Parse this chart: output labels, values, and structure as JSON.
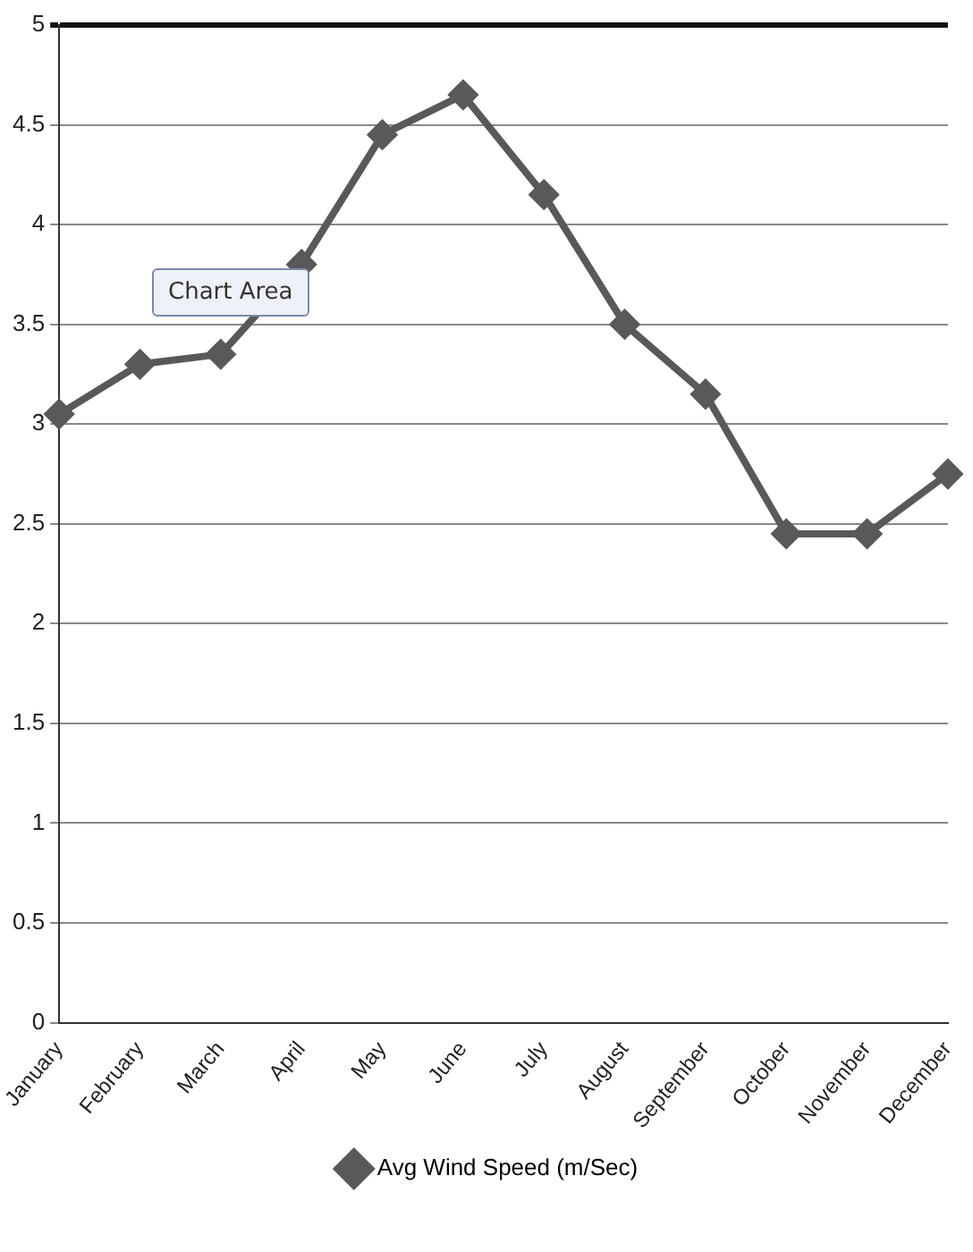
{
  "chart_data": {
    "type": "line",
    "categories": [
      "January",
      "February",
      "March",
      "April",
      "May",
      "June",
      "July",
      "August",
      "September",
      "October",
      "November",
      "December"
    ],
    "series": [
      {
        "name": "Avg Wind Speed (m/Sec)",
        "color": "#595959",
        "values": [
          3.05,
          3.3,
          3.35,
          3.8,
          4.45,
          4.65,
          4.15,
          3.5,
          3.15,
          2.45,
          2.45,
          2.75
        ]
      }
    ],
    "ylim": [
      0,
      5
    ],
    "yticks": [
      0,
      0.5,
      1,
      1.5,
      2,
      2.5,
      3,
      3.5,
      4,
      4.5,
      5
    ],
    "grid": "y",
    "legend": "bottom",
    "marker": "diamond",
    "line_style": "solid",
    "annotations": [
      "Chart Area"
    ]
  }
}
